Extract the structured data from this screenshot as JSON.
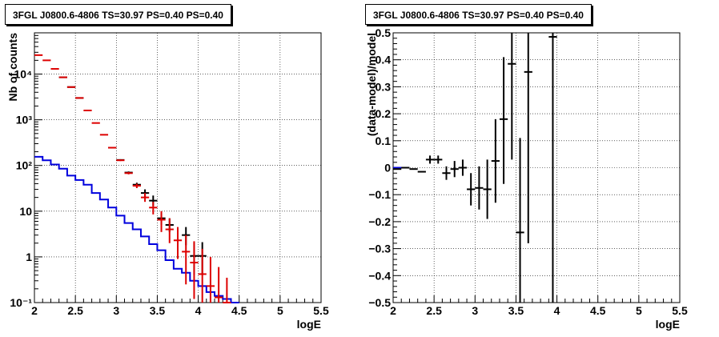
{
  "chart_data": [
    {
      "type": "line",
      "title": "3FGL J0800.6-4806 TS=30.97 PS=0.40 PS=0.40",
      "xlabel": "logE",
      "ylabel": "Nb of counts",
      "xlim": [
        2,
        5.5
      ],
      "ylim": [
        0.1,
        80000
      ],
      "yscale": "log",
      "grid": true,
      "x_ticks": [
        "2",
        "2.5",
        "3",
        "3.5",
        "4",
        "4.5",
        "5",
        "5.5"
      ],
      "y_ticks": [
        "10⁻¹",
        "1",
        "10",
        "10²",
        "10³",
        "10⁴"
      ],
      "series": [
        {
          "role": "model-total",
          "color": "#dd0000",
          "x": [
            2.05,
            2.15,
            2.25,
            2.35,
            2.45,
            2.55,
            2.65,
            2.75,
            2.85,
            2.95,
            3.05,
            3.15,
            3.25,
            3.35,
            3.45,
            3.55,
            3.65,
            3.75,
            3.85,
            3.95,
            4.05,
            4.15,
            4.25,
            4.35
          ],
          "y": [
            26000,
            20000,
            13000,
            8500,
            5200,
            3000,
            1600,
            850,
            470,
            245,
            130,
            68,
            36,
            20,
            12,
            6.5,
            4.0,
            2.3,
            1.3,
            0.75,
            0.42,
            0.23,
            0.13,
            0.1
          ],
          "ylow": [
            26000,
            20000,
            13000,
            8500,
            5200,
            3000,
            1600,
            850,
            470,
            240,
            125,
            64,
            32,
            16,
            8.5,
            3.5,
            2.0,
            0.9,
            0.25,
            0.12,
            0.1,
            0.1,
            0.1,
            0.1
          ],
          "yhigh": [
            26000,
            20000,
            13000,
            8500,
            5200,
            3000,
            1600,
            850,
            470,
            250,
            135,
            72,
            40,
            25,
            16,
            10,
            7,
            4.5,
            3,
            2.2,
            1.5,
            1.0,
            0.6,
            0.35
          ]
        },
        {
          "role": "data",
          "color": "#000000",
          "x": [
            2.35,
            2.45,
            2.55,
            2.95,
            3.05,
            3.15,
            3.25,
            3.35,
            3.45,
            3.55,
            3.65,
            3.85,
            3.95,
            4.05
          ],
          "y": [
            8500,
            5200,
            3000,
            245,
            132,
            70,
            38,
            25,
            17,
            7,
            5,
            3,
            1.05,
            1.05
          ],
          "ylow": [
            8500,
            5200,
            3000,
            240,
            127,
            66,
            34,
            20,
            13,
            5,
            3.5,
            1.8,
            0.4,
            0.4
          ],
          "yhigh": [
            8500,
            5200,
            3000,
            250,
            137,
            74,
            42,
            30,
            22,
            9,
            7,
            4.5,
            2.1,
            2.1
          ]
        },
        {
          "role": "background-model",
          "color": "#0000dd",
          "edges": [
            2.0,
            2.1,
            2.2,
            2.3,
            2.4,
            2.5,
            2.6,
            2.7,
            2.8,
            2.9,
            3.0,
            3.1,
            3.2,
            3.3,
            3.4,
            3.5,
            3.6,
            3.7,
            3.8,
            3.9,
            4.0,
            4.1,
            4.2,
            4.3,
            4.4,
            4.5,
            5.5
          ],
          "y": [
            155,
            130,
            105,
            85,
            60,
            48,
            38,
            25,
            18,
            12,
            8,
            5.5,
            4.0,
            2.8,
            1.9,
            1.4,
            0.85,
            0.55,
            0.45,
            0.3,
            0.23,
            0.17,
            0.14,
            0.12,
            0.1
          ]
        }
      ]
    },
    {
      "type": "scatter",
      "title": "3FGL J0800.6-4806 TS=30.97 PS=0.40 PS=0.40",
      "xlabel": "logE",
      "ylabel": "(data-model)/model",
      "xlim": [
        2,
        5.5
      ],
      "ylim": [
        -0.5,
        0.5
      ],
      "grid": true,
      "x_ticks": [
        "2",
        "2.5",
        "3",
        "3.5",
        "4",
        "4.5",
        "5",
        "5.5"
      ],
      "y_ticks": [
        "−0.5",
        "−0.4",
        "−0.3",
        "−0.2",
        "−0.1",
        "0",
        "0.1",
        "0.2",
        "0.3",
        "0.4",
        "0.5"
      ],
      "baseline": {
        "x": [
          2.0,
          2.15
        ],
        "y": 0.0,
        "color": "#0000dd"
      },
      "series": [
        {
          "color": "#000000",
          "x": [
            2.05,
            2.15,
            2.25,
            2.35,
            2.45,
            2.55,
            2.65,
            2.75,
            2.85,
            2.95,
            3.05,
            3.15,
            3.25,
            3.35,
            3.45,
            3.55,
            3.65,
            3.95
          ],
          "y": [
            -0.005,
            0.0,
            -0.005,
            -0.015,
            0.03,
            0.03,
            -0.02,
            -0.005,
            0.0,
            -0.08,
            -0.075,
            -0.08,
            0.025,
            0.18,
            0.385,
            -0.24,
            0.355,
            0.485
          ],
          "ylow": [
            -0.005,
            0.0,
            -0.005,
            -0.015,
            0.015,
            0.015,
            -0.045,
            -0.035,
            -0.03,
            -0.14,
            -0.155,
            -0.19,
            -0.13,
            -0.06,
            0.03,
            -0.5,
            -0.28,
            -0.5
          ],
          "yhigh": [
            -0.005,
            0.0,
            -0.005,
            -0.015,
            0.045,
            0.045,
            0.005,
            0.025,
            0.03,
            -0.02,
            0.005,
            0.03,
            0.18,
            0.41,
            0.5,
            0.11,
            0.5,
            0.5
          ]
        }
      ]
    }
  ]
}
